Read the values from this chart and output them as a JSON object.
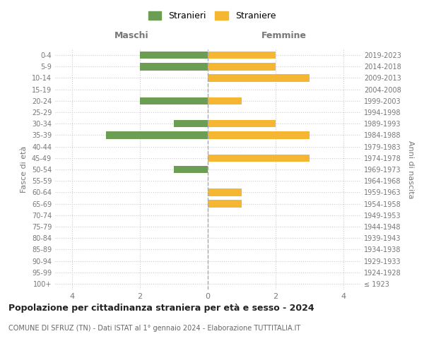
{
  "age_groups": [
    "100+",
    "95-99",
    "90-94",
    "85-89",
    "80-84",
    "75-79",
    "70-74",
    "65-69",
    "60-64",
    "55-59",
    "50-54",
    "45-49",
    "40-44",
    "35-39",
    "30-34",
    "25-29",
    "20-24",
    "15-19",
    "10-14",
    "5-9",
    "0-4"
  ],
  "birth_years": [
    "≤ 1923",
    "1924-1928",
    "1929-1933",
    "1934-1938",
    "1939-1943",
    "1944-1948",
    "1949-1953",
    "1954-1958",
    "1959-1963",
    "1964-1968",
    "1969-1973",
    "1974-1978",
    "1979-1983",
    "1984-1988",
    "1989-1993",
    "1994-1998",
    "1999-2003",
    "2004-2008",
    "2009-2013",
    "2014-2018",
    "2019-2023"
  ],
  "males": [
    0,
    0,
    0,
    0,
    0,
    0,
    0,
    0,
    0,
    0,
    1,
    0,
    0,
    3,
    1,
    0,
    2,
    0,
    0,
    2,
    2
  ],
  "females": [
    0,
    0,
    0,
    0,
    0,
    0,
    0,
    1,
    1,
    0,
    0,
    3,
    0,
    3,
    2,
    0,
    1,
    0,
    3,
    2,
    2
  ],
  "male_color": "#6b9e52",
  "female_color": "#f5b731",
  "background_color": "#ffffff",
  "grid_color": "#cccccc",
  "center_line_color": "#aaaaaa",
  "title": "Popolazione per cittadinanza straniera per età e sesso - 2024",
  "subtitle": "COMUNE DI SFRUZ (TN) - Dati ISTAT al 1° gennaio 2024 - Elaborazione TUTTITALIA.IT",
  "xlabel_left": "Maschi",
  "xlabel_right": "Femmine",
  "ylabel_left": "Fasce di età",
  "ylabel_right": "Anni di nascita",
  "legend_male": "Stranieri",
  "legend_female": "Straniere",
  "xlim": 4.5
}
